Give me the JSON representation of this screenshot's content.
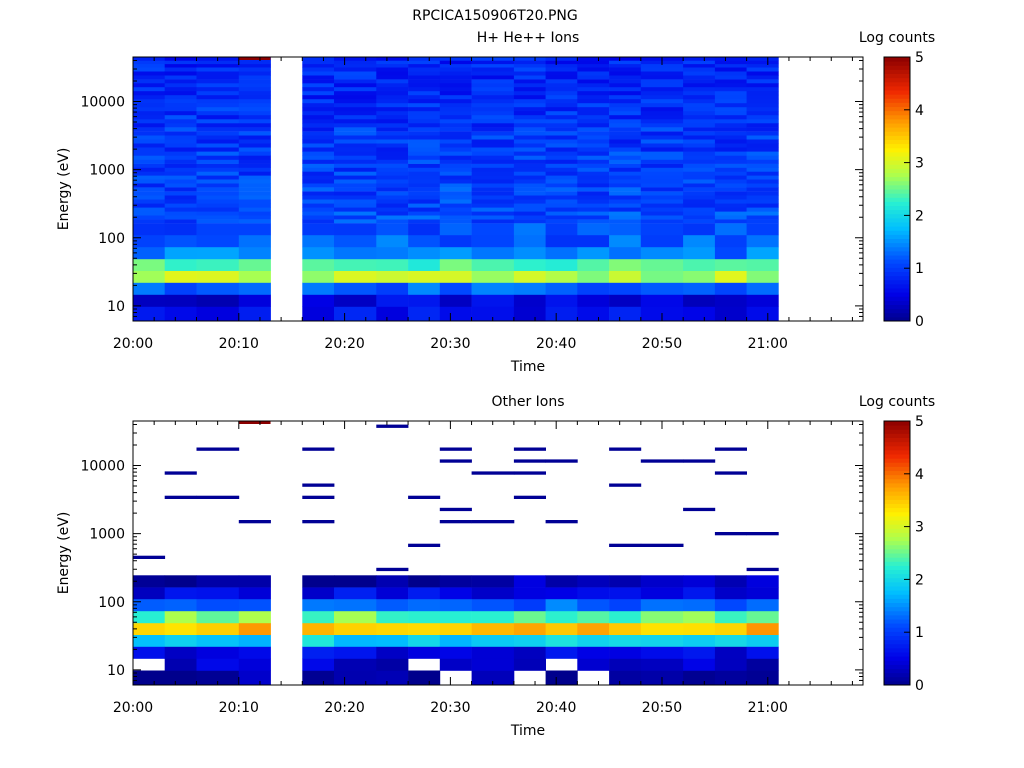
{
  "figure": {
    "title": "RPCICA150906T20.PNG"
  },
  "chart_data": [
    {
      "type": "heatmap",
      "title": "H+ He++ Ions",
      "xlabel": "Time",
      "ylabel": "Energy (eV)",
      "x_ticks": [
        "20:00",
        "20:10",
        "20:20",
        "20:30",
        "20:40",
        "20:50",
        "21:00"
      ],
      "y_ticks": [
        "10",
        "100",
        "1000",
        "10000"
      ],
      "y_scale": "log",
      "ylim": [
        6,
        45000
      ],
      "time_bins": [
        "20:00",
        "20:03",
        "20:06",
        "20:10",
        "20:13",
        "20:16",
        "20:19",
        "20:23",
        "20:26",
        "20:29",
        "20:32",
        "20:36",
        "20:39",
        "20:42",
        "20:45",
        "20:48",
        "20:52",
        "20:55",
        "20:58",
        "21:01"
      ],
      "energy_bins_eV": [
        8,
        12,
        18,
        27,
        40,
        60,
        90,
        135,
        200,
        300,
        450,
        680,
        1000,
        1500,
        2300,
        3400,
        5200,
        7800,
        11700,
        17500,
        26000,
        39000
      ],
      "gap_bins": [
        4,
        19
      ],
      "background_log_counts": [
        0.6,
        0.45,
        1.25,
        2.8,
        2.4,
        1.35,
        1.2,
        1.1,
        1.1,
        1.05,
        1.05,
        1.0,
        1.0,
        1.0,
        0.95,
        0.95,
        0.9,
        0.9,
        0.85,
        0.85,
        0.85,
        0.8
      ],
      "colorbar": {
        "label": "Log counts",
        "ticks": [
          "0",
          "1",
          "2",
          "3",
          "4",
          "5"
        ],
        "range": [
          0,
          5
        ]
      }
    },
    {
      "type": "heatmap",
      "title": "Other Ions",
      "xlabel": "Time",
      "ylabel": "Energy (eV)",
      "x_ticks": [
        "20:00",
        "20:10",
        "20:20",
        "20:30",
        "20:40",
        "20:50",
        "21:00"
      ],
      "y_ticks": [
        "10",
        "100",
        "1000",
        "10000"
      ],
      "y_scale": "log",
      "ylim": [
        6,
        45000
      ],
      "time_bins": [
        "20:00",
        "20:03",
        "20:06",
        "20:10",
        "20:13",
        "20:16",
        "20:19",
        "20:23",
        "20:26",
        "20:29",
        "20:32",
        "20:36",
        "20:39",
        "20:42",
        "20:45",
        "20:48",
        "20:52",
        "20:55",
        "20:58",
        "21:01"
      ],
      "energy_bins_eV": [
        8,
        12,
        18,
        27,
        40,
        60,
        90,
        135,
        200,
        300,
        450,
        680,
        1000,
        1500,
        2300,
        3400,
        5200,
        7800,
        11700,
        17500,
        26000,
        39000
      ],
      "gap_bins": [
        4,
        19
      ],
      "background_log_counts": [
        0.15,
        0.35,
        0.55,
        1.9,
        3.6,
        2.5,
        1.2,
        0.5,
        0.2,
        null,
        null,
        null,
        null,
        null,
        null,
        null,
        null,
        null,
        null,
        null,
        null,
        null
      ],
      "sparse_high_energy_log_counts": 0.05,
      "colorbar": {
        "label": "Log counts",
        "ticks": [
          "0",
          "1",
          "2",
          "3",
          "4",
          "5"
        ],
        "range": [
          0,
          5
        ]
      }
    }
  ]
}
